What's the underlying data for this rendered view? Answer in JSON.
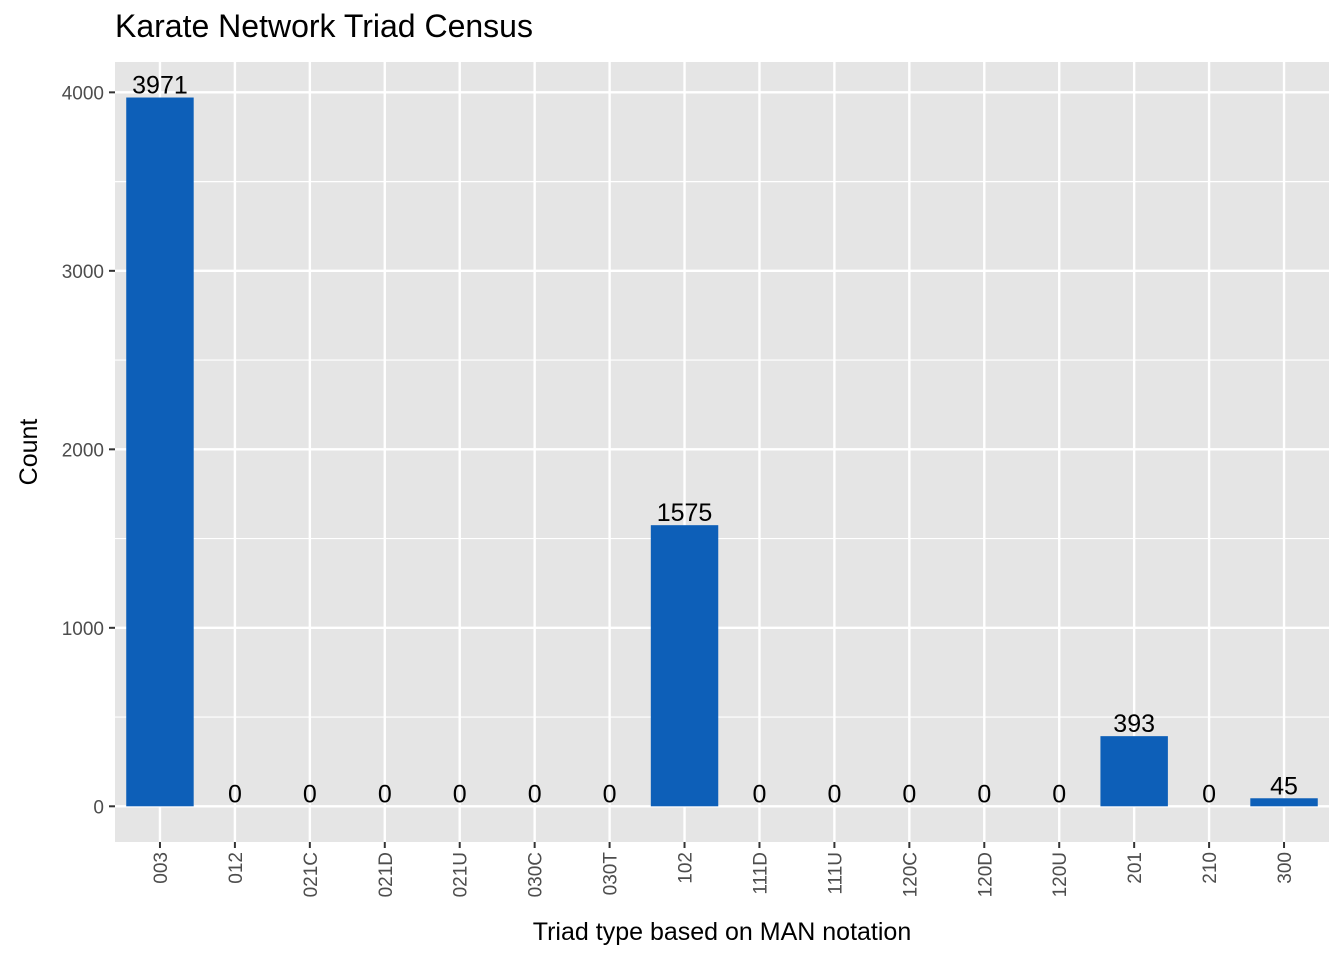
{
  "chart_data": {
    "type": "bar",
    "title": "Karate Network Triad Census",
    "xlabel": "Triad type based on MAN notation",
    "ylabel": "Count",
    "categories": [
      "003",
      "012",
      "021C",
      "021D",
      "021U",
      "030C",
      "030T",
      "102",
      "111D",
      "111U",
      "120C",
      "120D",
      "120U",
      "201",
      "210",
      "300"
    ],
    "values": [
      3971,
      0,
      0,
      0,
      0,
      0,
      0,
      1575,
      0,
      0,
      0,
      0,
      0,
      393,
      0,
      45
    ],
    "y_ticks": [
      0,
      1000,
      2000,
      3000,
      4000
    ],
    "ylim": [
      -200,
      4170
    ],
    "grid": true,
    "legend": "none",
    "colors": {
      "bar": "#0d5fb8",
      "panel": "#e5e5e5",
      "grid": "#ffffff"
    }
  }
}
